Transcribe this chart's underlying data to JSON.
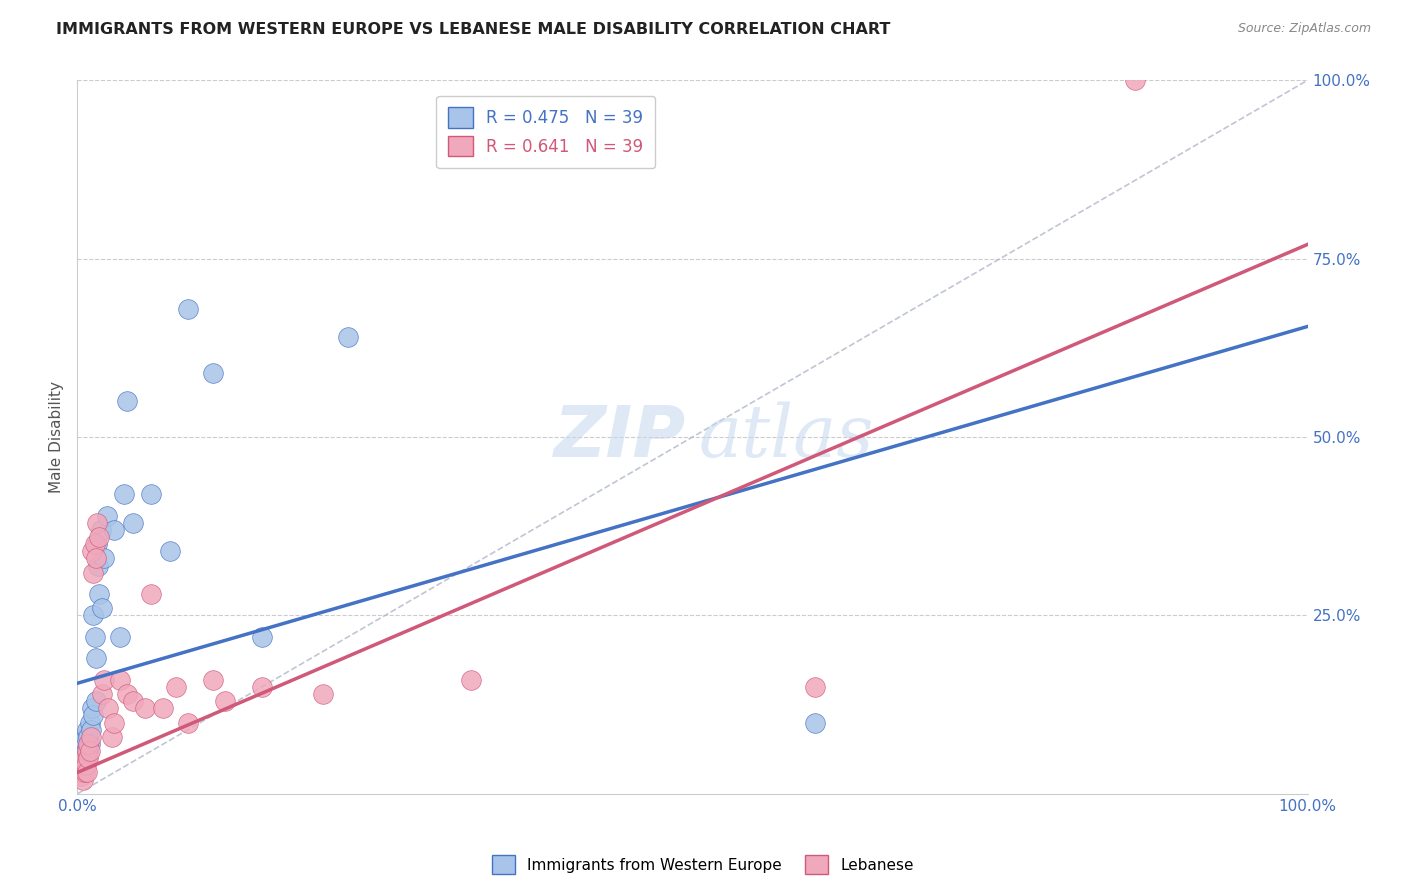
{
  "title": "IMMIGRANTS FROM WESTERN EUROPE VS LEBANESE MALE DISABILITY CORRELATION CHART",
  "source": "Source: ZipAtlas.com",
  "ylabel": "Male Disability",
  "xlim": [
    0,
    1
  ],
  "ylim": [
    0,
    1
  ],
  "legend_label_blue": "Immigrants from Western Europe",
  "legend_label_pink": "Lebanese",
  "color_blue": "#a8c4e8",
  "color_pink": "#f0a8bc",
  "color_blue_dark": "#4472c4",
  "color_pink_dark": "#d05878",
  "color_dashed": "#b0b8c8",
  "watermark_zip": "ZIP",
  "watermark_atlas": "atlas",
  "blue_scatter_x": [
    0.004,
    0.005,
    0.005,
    0.006,
    0.006,
    0.007,
    0.007,
    0.008,
    0.008,
    0.009,
    0.009,
    0.01,
    0.01,
    0.011,
    0.012,
    0.013,
    0.013,
    0.014,
    0.015,
    0.015,
    0.016,
    0.017,
    0.018,
    0.019,
    0.02,
    0.022,
    0.024,
    0.03,
    0.035,
    0.038,
    0.04,
    0.045,
    0.06,
    0.075,
    0.09,
    0.11,
    0.15,
    0.22,
    0.6
  ],
  "blue_scatter_y": [
    0.03,
    0.04,
    0.05,
    0.06,
    0.07,
    0.06,
    0.08,
    0.05,
    0.09,
    0.06,
    0.08,
    0.07,
    0.1,
    0.09,
    0.12,
    0.11,
    0.25,
    0.22,
    0.13,
    0.19,
    0.35,
    0.32,
    0.28,
    0.37,
    0.26,
    0.33,
    0.39,
    0.37,
    0.22,
    0.42,
    0.55,
    0.38,
    0.42,
    0.34,
    0.68,
    0.59,
    0.22,
    0.64,
    0.1
  ],
  "pink_scatter_x": [
    0.003,
    0.004,
    0.005,
    0.005,
    0.006,
    0.006,
    0.007,
    0.008,
    0.008,
    0.009,
    0.009,
    0.01,
    0.011,
    0.012,
    0.013,
    0.014,
    0.015,
    0.016,
    0.018,
    0.02,
    0.022,
    0.025,
    0.028,
    0.03,
    0.035,
    0.04,
    0.045,
    0.055,
    0.06,
    0.07,
    0.08,
    0.09,
    0.11,
    0.12,
    0.15,
    0.2,
    0.32,
    0.6,
    0.86
  ],
  "pink_scatter_y": [
    0.025,
    0.03,
    0.02,
    0.04,
    0.03,
    0.05,
    0.04,
    0.06,
    0.03,
    0.05,
    0.07,
    0.06,
    0.08,
    0.34,
    0.31,
    0.35,
    0.33,
    0.38,
    0.36,
    0.14,
    0.16,
    0.12,
    0.08,
    0.1,
    0.16,
    0.14,
    0.13,
    0.12,
    0.28,
    0.12,
    0.15,
    0.1,
    0.16,
    0.13,
    0.15,
    0.14,
    0.16,
    0.15,
    1.0
  ],
  "blue_trend_x": [
    0.0,
    1.0
  ],
  "blue_trend_y": [
    0.155,
    0.655
  ],
  "pink_trend_x": [
    0.0,
    1.0
  ],
  "pink_trend_y": [
    0.03,
    0.77
  ],
  "dashed_line_x": [
    0.0,
    1.0
  ],
  "dashed_line_y": [
    0.0,
    1.0
  ],
  "background_color": "#ffffff",
  "grid_color": "#cccccc",
  "title_color": "#222222",
  "axis_label_color": "#4472c4"
}
